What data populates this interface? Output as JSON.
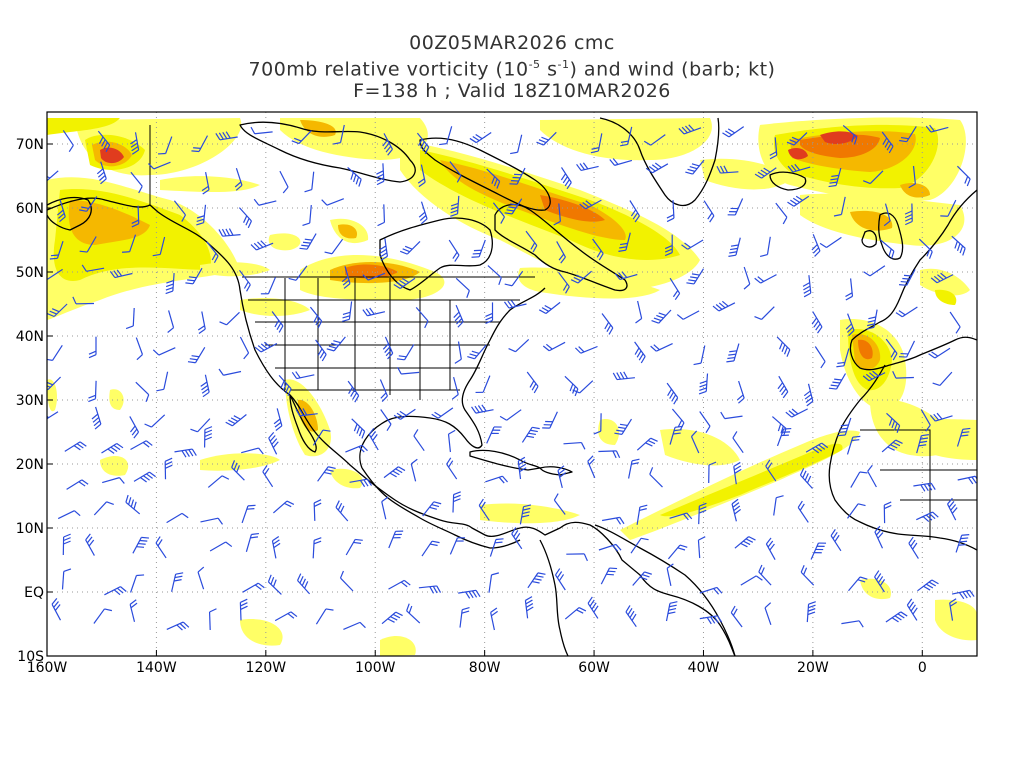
{
  "title": {
    "line1": "00Z05MAR2026 cmc",
    "line2_prefix": "700mb relative vorticity (10",
    "line2_exp1": "-5",
    "line2_mid": " s",
    "line2_exp2": "-1",
    "line2_suffix": ") and wind (barb; kt)",
    "line3": "F=138 h ; Valid 18Z10MAR2026"
  },
  "map": {
    "lon_range": [
      -160,
      10
    ],
    "lat_range": [
      -10,
      75
    ],
    "y_ticks": [
      {
        "lat": 70,
        "label": "70N"
      },
      {
        "lat": 60,
        "label": "60N"
      },
      {
        "lat": 50,
        "label": "50N"
      },
      {
        "lat": 40,
        "label": "40N"
      },
      {
        "lat": 30,
        "label": "30N"
      },
      {
        "lat": 20,
        "label": "20N"
      },
      {
        "lat": 10,
        "label": "10N"
      },
      {
        "lat": 0,
        "label": "EQ"
      },
      {
        "lat": -10,
        "label": "10S"
      }
    ],
    "x_ticks": [
      {
        "lon": -160,
        "label": "160W"
      },
      {
        "lon": -140,
        "label": "140W"
      },
      {
        "lon": -120,
        "label": "120W"
      },
      {
        "lon": -100,
        "label": "100W"
      },
      {
        "lon": -80,
        "label": "80W"
      },
      {
        "lon": -60,
        "label": "60W"
      },
      {
        "lon": -40,
        "label": "40W"
      },
      {
        "lon": -20,
        "label": "20W"
      },
      {
        "lon": 0,
        "label": "0"
      }
    ],
    "colors": {
      "light": "#ffff66",
      "yellow": "#f2f200",
      "orange": "#f5b800",
      "dark_orange": "#f07800",
      "red": "#e03c1e",
      "barb": "#2a4bdc",
      "coast": "#000000",
      "grid": "#999999"
    }
  }
}
